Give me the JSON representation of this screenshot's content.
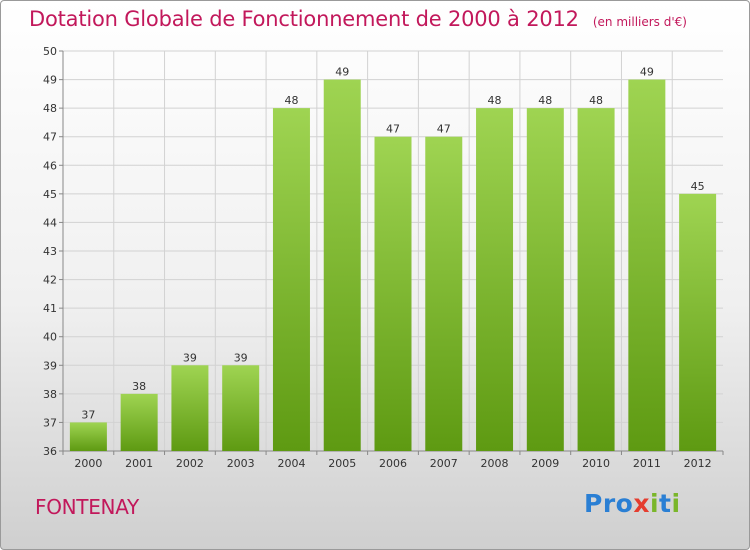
{
  "chart_data": {
    "type": "bar",
    "title": "Dotation Globale de Fonctionnement de 2000 à 2012",
    "unit": "(en milliers d'€)",
    "categories": [
      "2000",
      "2001",
      "2002",
      "2003",
      "2004",
      "2005",
      "2006",
      "2007",
      "2008",
      "2009",
      "2010",
      "2011",
      "2012"
    ],
    "values": [
      37,
      38,
      39,
      39,
      48,
      49,
      47,
      47,
      48,
      48,
      48,
      49,
      45
    ],
    "ylim": [
      36,
      50
    ],
    "yticks": [
      36,
      37,
      38,
      39,
      40,
      41,
      42,
      43,
      44,
      45,
      46,
      47,
      48,
      49,
      50
    ],
    "grid": true,
    "bar_color": "#8cc63f"
  },
  "footer": {
    "town": "FONTENAY",
    "logo": {
      "p1": "Pro",
      "x": "x",
      "i": "i",
      "t": "t",
      "i2": "i"
    }
  }
}
